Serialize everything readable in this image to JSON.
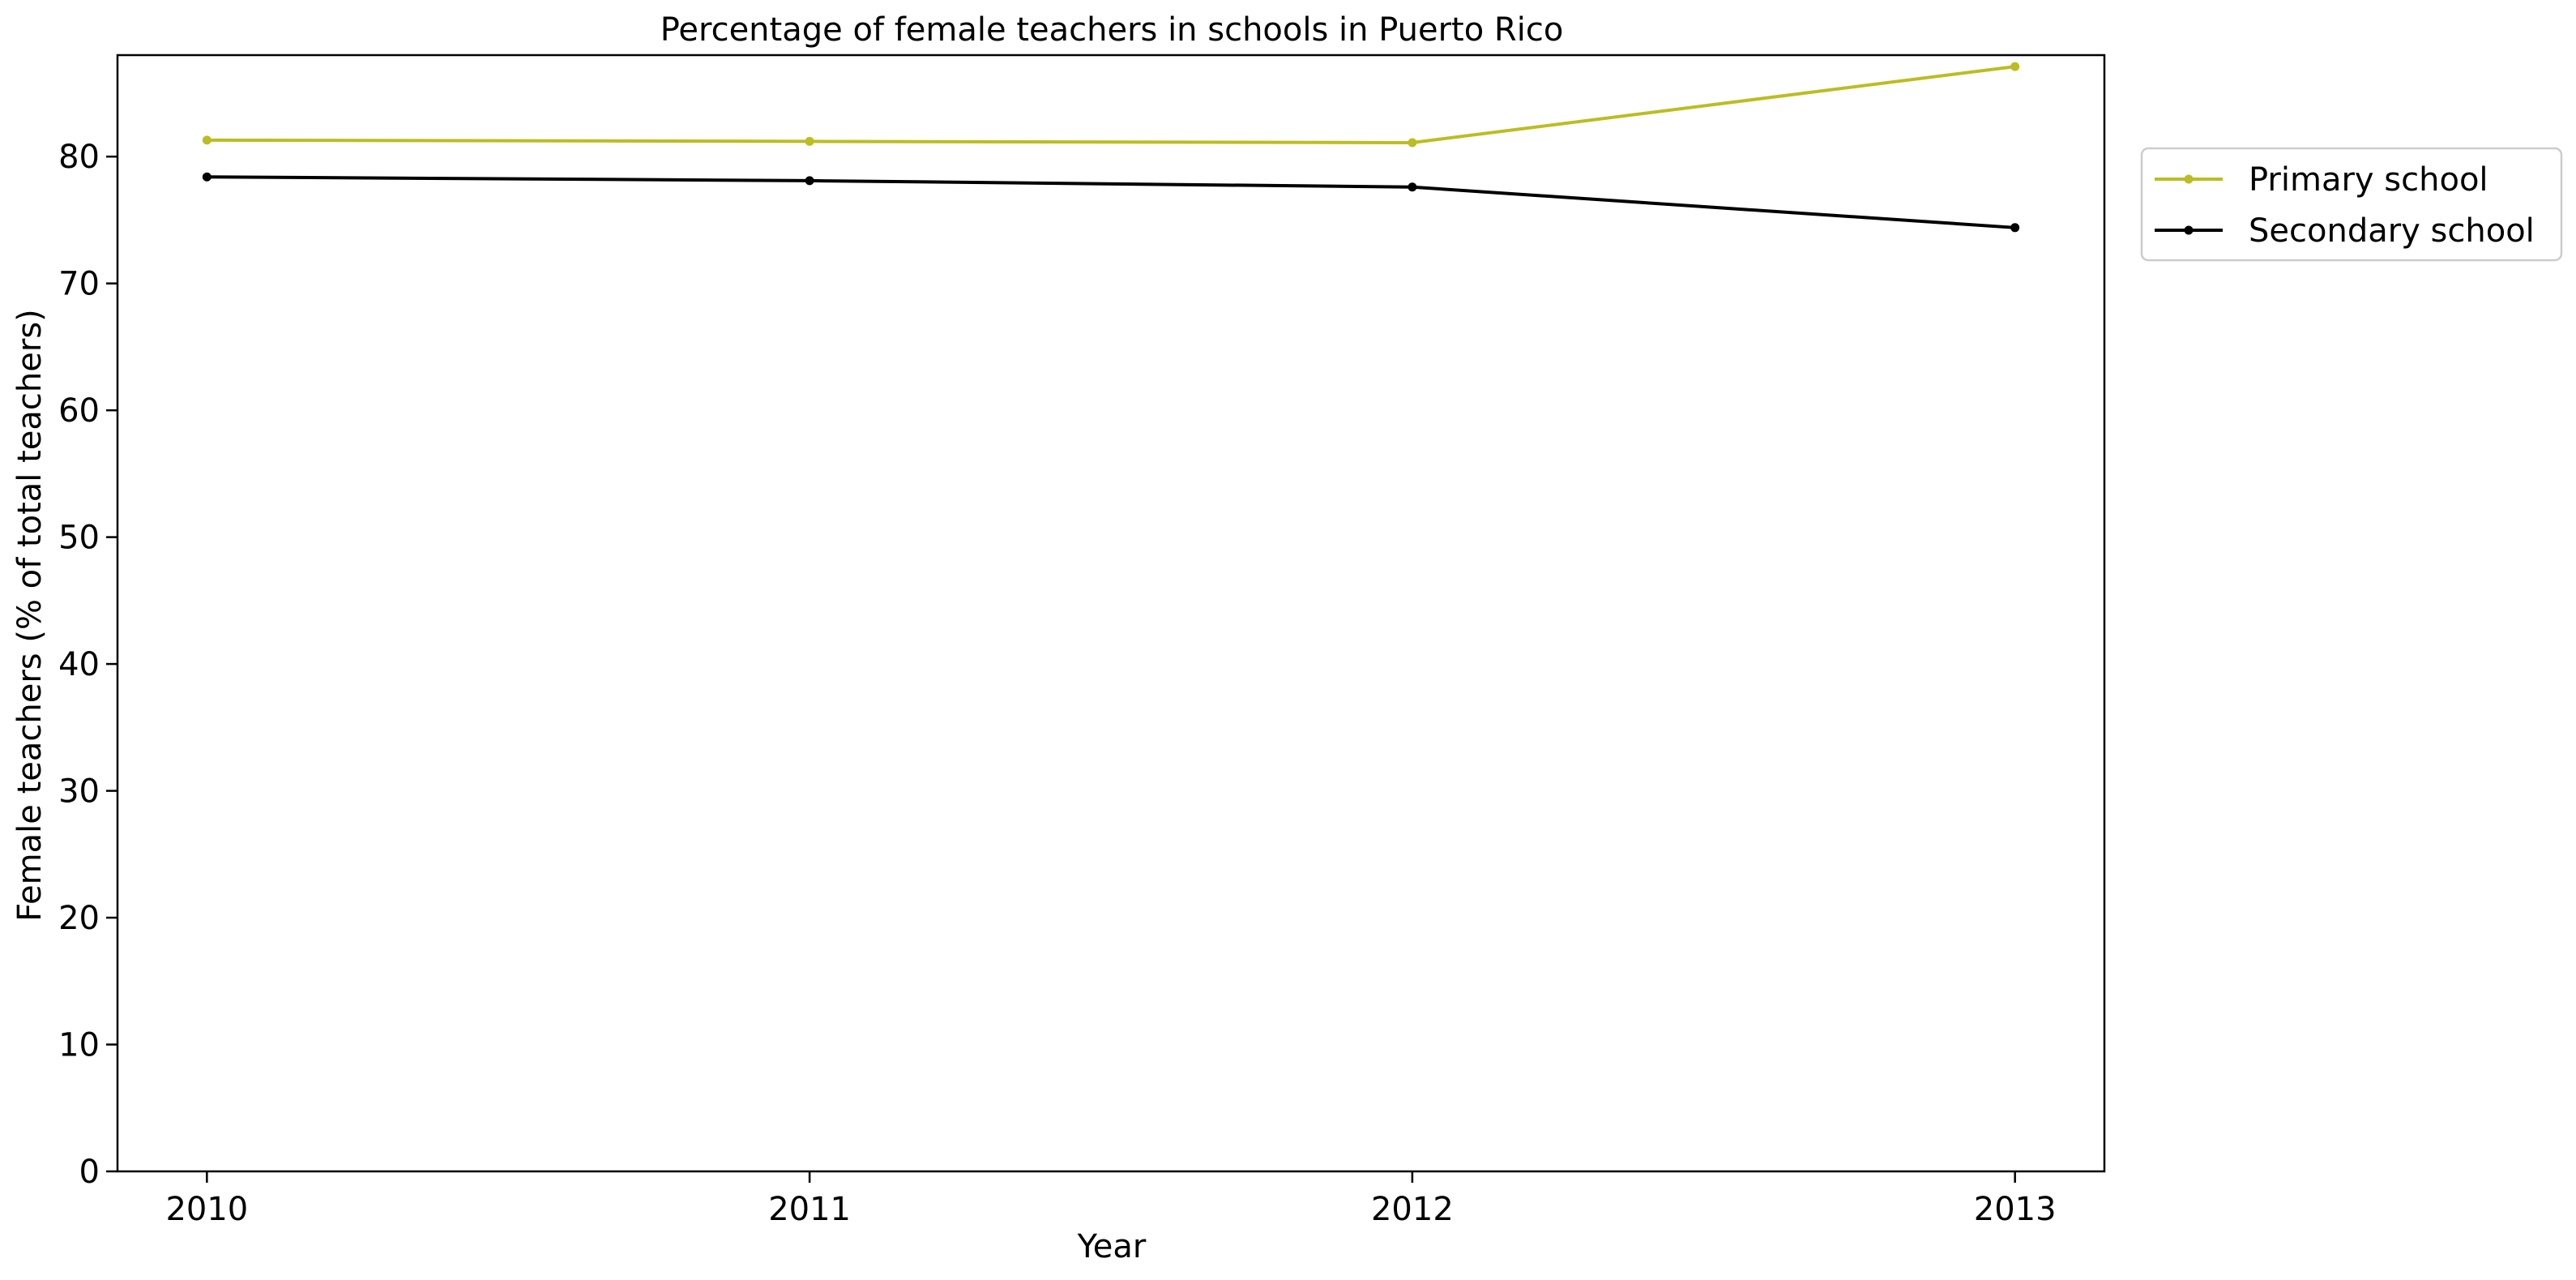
{
  "chart_data": {
    "type": "line",
    "title": "Percentage of female teachers in schools in Puerto Rico",
    "xlabel": "Year",
    "ylabel": "Female teachers (% of total teachers)",
    "x": [
      "2010",
      "2011",
      "2012",
      "2013"
    ],
    "ylim": [
      0,
      88
    ],
    "yticks": [
      0,
      10,
      20,
      30,
      40,
      50,
      60,
      70,
      80
    ],
    "grid": false,
    "legend_position": "upper right, outside plot",
    "series": [
      {
        "name": "Primary school",
        "color": "#bcbd22",
        "values": [
          81.3,
          81.2,
          81.1,
          87.1
        ]
      },
      {
        "name": "Secondary school",
        "color": "#000000",
        "values": [
          78.4,
          78.1,
          77.6,
          74.4
        ]
      }
    ]
  }
}
